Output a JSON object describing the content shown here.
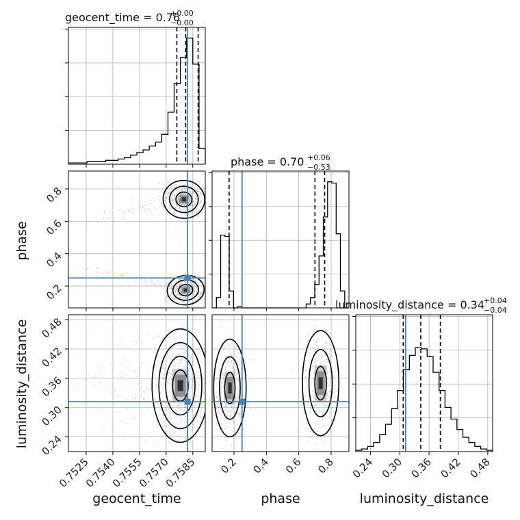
{
  "chart_data": {
    "type": "corner",
    "truth_color": "#4682b4",
    "parameters": [
      {
        "name": "geocent_time",
        "title": {
          "main": "geocent_time = 0.76",
          "plus": "+0.00",
          "minus": "−0.00"
        },
        "axis_label": "geocent_time",
        "range": [
          0.7515,
          0.7592
        ],
        "ticks": [
          0.7525,
          0.754,
          0.7555,
          0.757,
          0.7585
        ],
        "tick_labels": [
          "0.7525",
          "0.7540",
          "0.7555",
          "0.7570",
          "0.7585"
        ],
        "truth": 0.7582,
        "quantiles": [
          0.7576,
          0.7581,
          0.7588
        ],
        "hist_counts": [
          0.01,
          0.01,
          0.01,
          0.02,
          0.02,
          0.02,
          0.03,
          0.03,
          0.04,
          0.05,
          0.07,
          0.09,
          0.11,
          0.14,
          0.17,
          0.23,
          0.4,
          0.62,
          0.82,
          0.97,
          0.77,
          0.12
        ]
      },
      {
        "name": "phase",
        "title": {
          "main": "phase = 0.70",
          "plus": "+0.06",
          "minus": "−0.53"
        },
        "axis_label": "phase",
        "range": [
          0.065,
          0.91
        ],
        "ticks": [
          0.2,
          0.4,
          0.6,
          0.8
        ],
        "tick_labels": [
          "0.2",
          "0.4",
          "0.6",
          "0.8"
        ],
        "truth": 0.25,
        "quantiles": [
          0.17,
          0.7,
          0.76
        ],
        "hist_counts": [
          0.0,
          0.08,
          0.56,
          0.55,
          0.13,
          0.0,
          0.01,
          0.0,
          0.0,
          0.0,
          0.0,
          0.0,
          0.0,
          0.0,
          0.0,
          0.0,
          0.0,
          0.0,
          0.0,
          0.0,
          0.0,
          0.0,
          0.03,
          0.08,
          0.18,
          0.4,
          0.7,
          0.97,
          0.96,
          0.57,
          0.13,
          0.0
        ]
      },
      {
        "name": "luminosity_distance",
        "title": {
          "main": "luminosity_distance = 0.34",
          "plus": "+0.04",
          "minus": "−0.04"
        },
        "axis_label": "luminosity_distance",
        "range": [
          0.21,
          0.49
        ],
        "ticks": [
          0.24,
          0.3,
          0.36,
          0.42,
          0.48
        ],
        "tick_labels": [
          "0.24",
          "0.30",
          "0.36",
          "0.42",
          "0.48"
        ],
        "truth": 0.312,
        "quantiles": [
          0.307,
          0.343,
          0.383
        ],
        "hist_counts": [
          0.01,
          0.02,
          0.04,
          0.07,
          0.13,
          0.21,
          0.33,
          0.47,
          0.63,
          0.74,
          0.8,
          0.79,
          0.73,
          0.61,
          0.47,
          0.34,
          0.25,
          0.17,
          0.11,
          0.07,
          0.04,
          0.02,
          0.01
        ]
      }
    ],
    "hist_y_ticks": 4,
    "grid": true,
    "contour_clusters": [
      {
        "x": 0,
        "y": 1,
        "cx": 0.758,
        "cy": 0.735,
        "sx": 0.00045,
        "sy": 0.045,
        "rho": -0.3,
        "levels": [
          1.0,
          1.8,
          2.6
        ]
      },
      {
        "x": 0,
        "y": 1,
        "cx": 0.7581,
        "cy": 0.175,
        "sx": 0.0004,
        "sy": 0.035,
        "rho": 0.3,
        "levels": [
          1.0,
          1.8,
          2.6
        ]
      },
      {
        "x": 0,
        "y": 2,
        "cx": 0.7578,
        "cy": 0.345,
        "sx": 0.00055,
        "sy": 0.04,
        "rho": 0.0,
        "levels": [
          0.8,
          1.5,
          2.2,
          2.9
        ]
      },
      {
        "x": 1,
        "y": 2,
        "cx": 0.175,
        "cy": 0.34,
        "sx": 0.04,
        "sy": 0.04,
        "rho": 0.0,
        "levels": [
          0.8,
          1.6,
          2.5
        ]
      },
      {
        "x": 1,
        "y": 2,
        "cx": 0.735,
        "cy": 0.35,
        "sx": 0.045,
        "sy": 0.043,
        "rho": 0.0,
        "levels": [
          0.8,
          1.6,
          2.5
        ]
      }
    ]
  }
}
